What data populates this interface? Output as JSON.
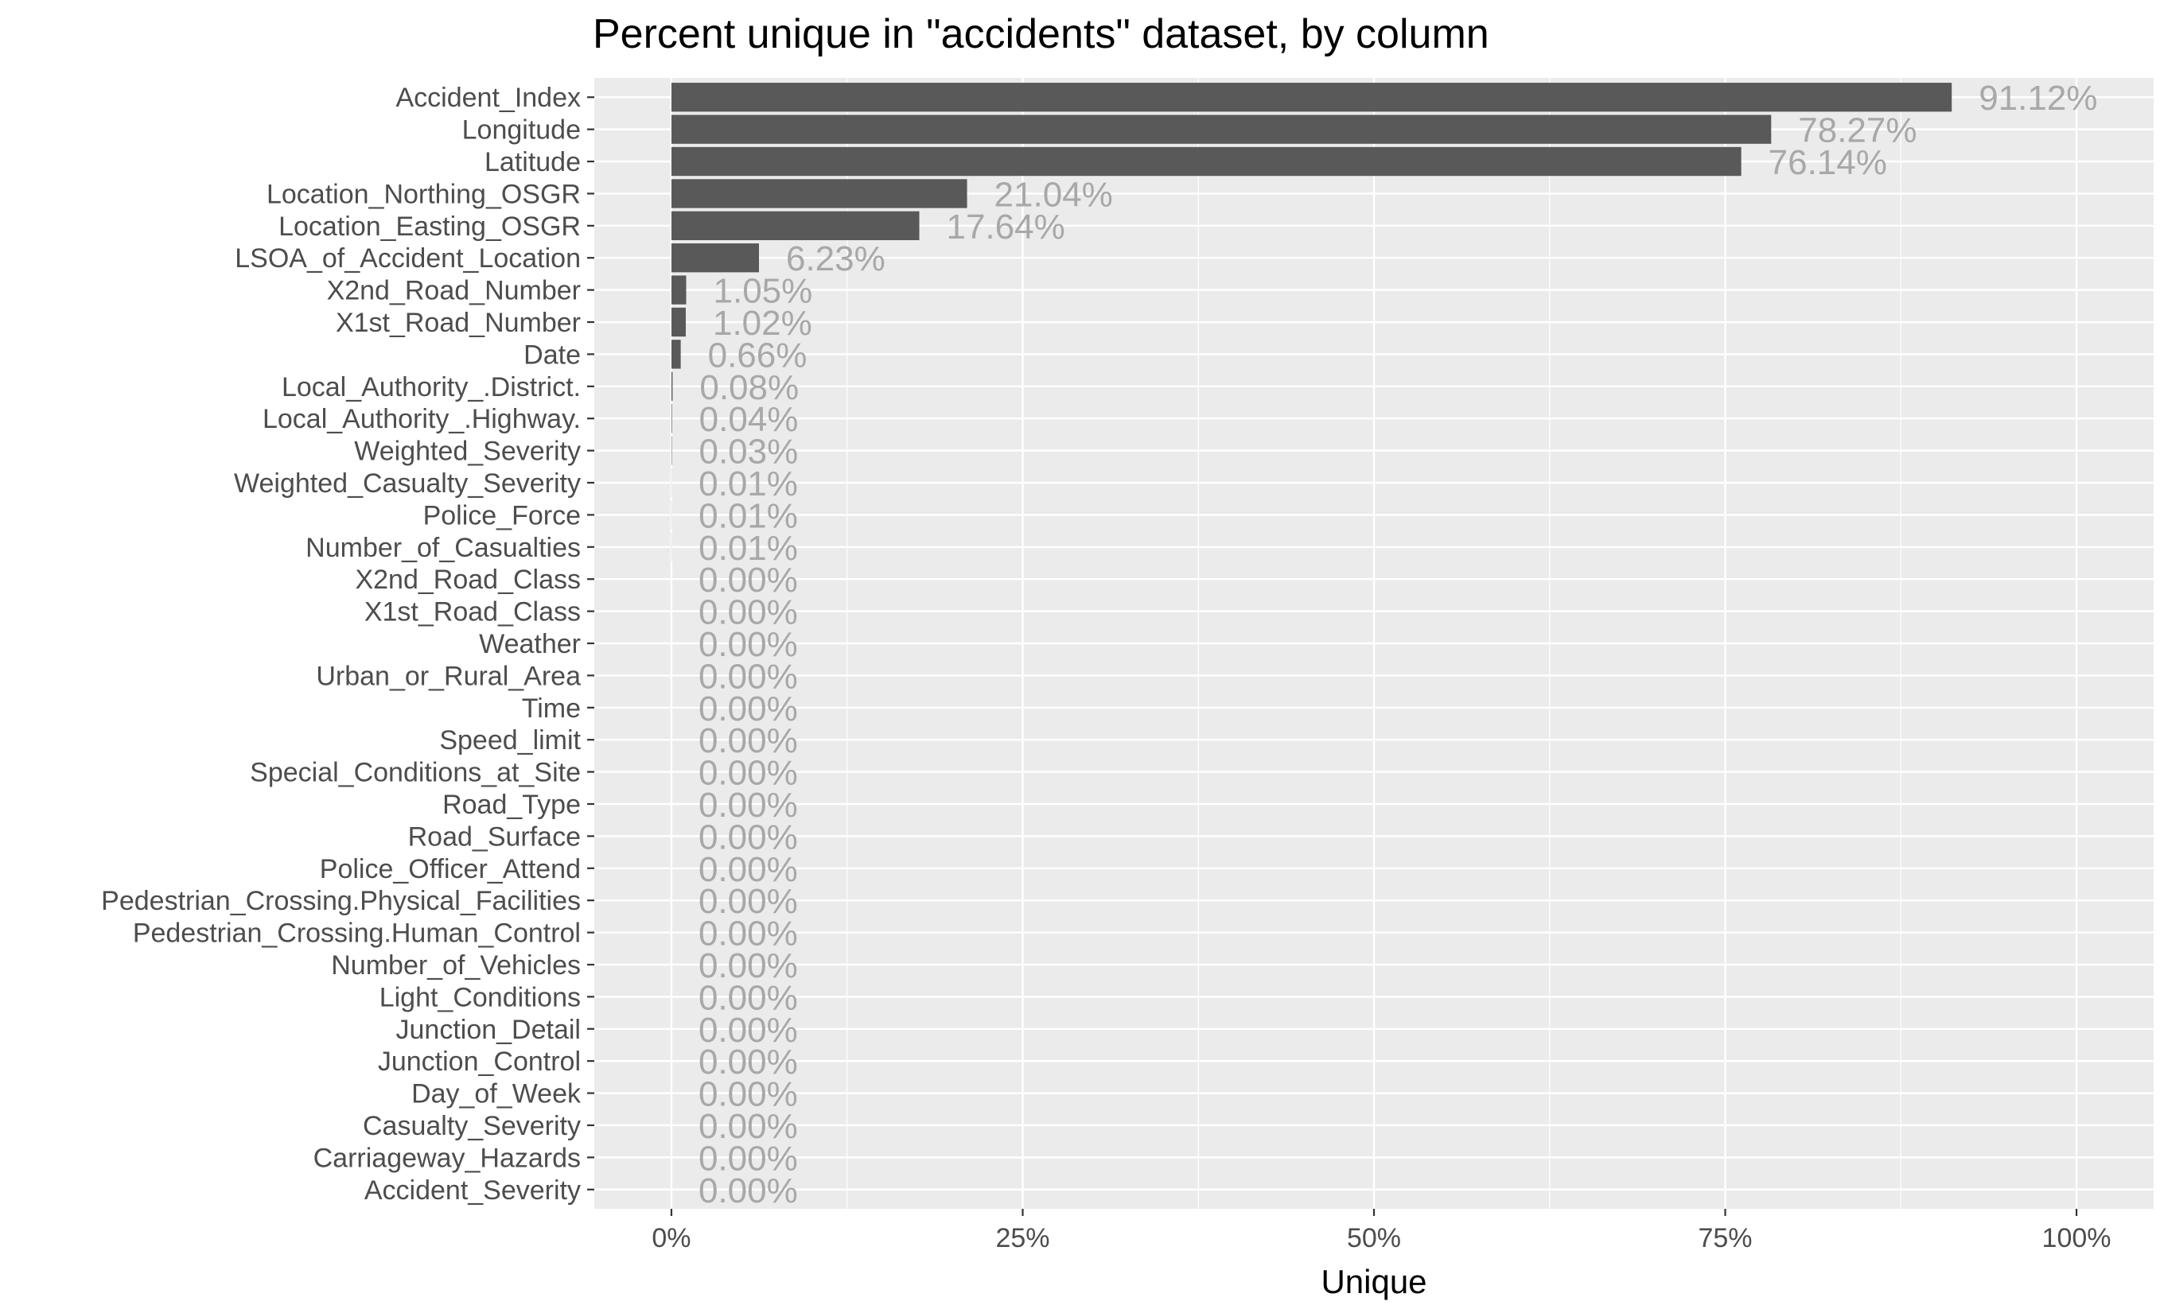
{
  "chart_data": {
    "type": "bar",
    "orientation": "horizontal",
    "title": "Percent unique in \"accidents\" dataset, by column",
    "xlabel": "Unique",
    "ylabel": "",
    "xlim": [
      0,
      1
    ],
    "x_ticks": [
      0,
      0.25,
      0.5,
      0.75,
      1
    ],
    "x_tick_labels": [
      "0%",
      "25%",
      "50%",
      "75%",
      "100%"
    ],
    "grid": true,
    "colors": {
      "panel": "#ebebeb",
      "grid": "#ffffff",
      "bar": "#595959",
      "data_label": "#a8a8a8",
      "tick": "#333333"
    },
    "categories": [
      "Accident_Index",
      "Longitude",
      "Latitude",
      "Location_Northing_OSGR",
      "Location_Easting_OSGR",
      "LSOA_of_Accident_Location",
      "X2nd_Road_Number",
      "X1st_Road_Number",
      "Date",
      "Local_Authority_.District.",
      "Local_Authority_.Highway.",
      "Weighted_Severity",
      "Weighted_Casualty_Severity",
      "Police_Force",
      "Number_of_Casualties",
      "X2nd_Road_Class",
      "X1st_Road_Class",
      "Weather",
      "Urban_or_Rural_Area",
      "Time",
      "Speed_limit",
      "Special_Conditions_at_Site",
      "Road_Type",
      "Road_Surface",
      "Police_Officer_Attend",
      "Pedestrian_Crossing.Physical_Facilities",
      "Pedestrian_Crossing.Human_Control",
      "Number_of_Vehicles",
      "Light_Conditions",
      "Junction_Detail",
      "Junction_Control",
      "Day_of_Week",
      "Casualty_Severity",
      "Carriageway_Hazards",
      "Accident_Severity"
    ],
    "values": [
      0.9112,
      0.7827,
      0.7614,
      0.2104,
      0.1764,
      0.0623,
      0.0105,
      0.0102,
      0.0066,
      0.0008,
      0.0004,
      0.0003,
      0.0001,
      0.0001,
      0.0001,
      0,
      0,
      0,
      0,
      0,
      0,
      0,
      0,
      0,
      0,
      0,
      0,
      0,
      0,
      0,
      0,
      0,
      0,
      0,
      0
    ],
    "data_labels": [
      "91.12%",
      "78.27%",
      "76.14%",
      "21.04%",
      "17.64%",
      "6.23%",
      "1.05%",
      "1.02%",
      "0.66%",
      "0.08%",
      "0.04%",
      "0.03%",
      "0.01%",
      "0.01%",
      "0.01%",
      "0.00%",
      "0.00%",
      "0.00%",
      "0.00%",
      "0.00%",
      "0.00%",
      "0.00%",
      "0.00%",
      "0.00%",
      "0.00%",
      "0.00%",
      "0.00%",
      "0.00%",
      "0.00%",
      "0.00%",
      "0.00%",
      "0.00%",
      "0.00%",
      "0.00%",
      "0.00%"
    ]
  }
}
